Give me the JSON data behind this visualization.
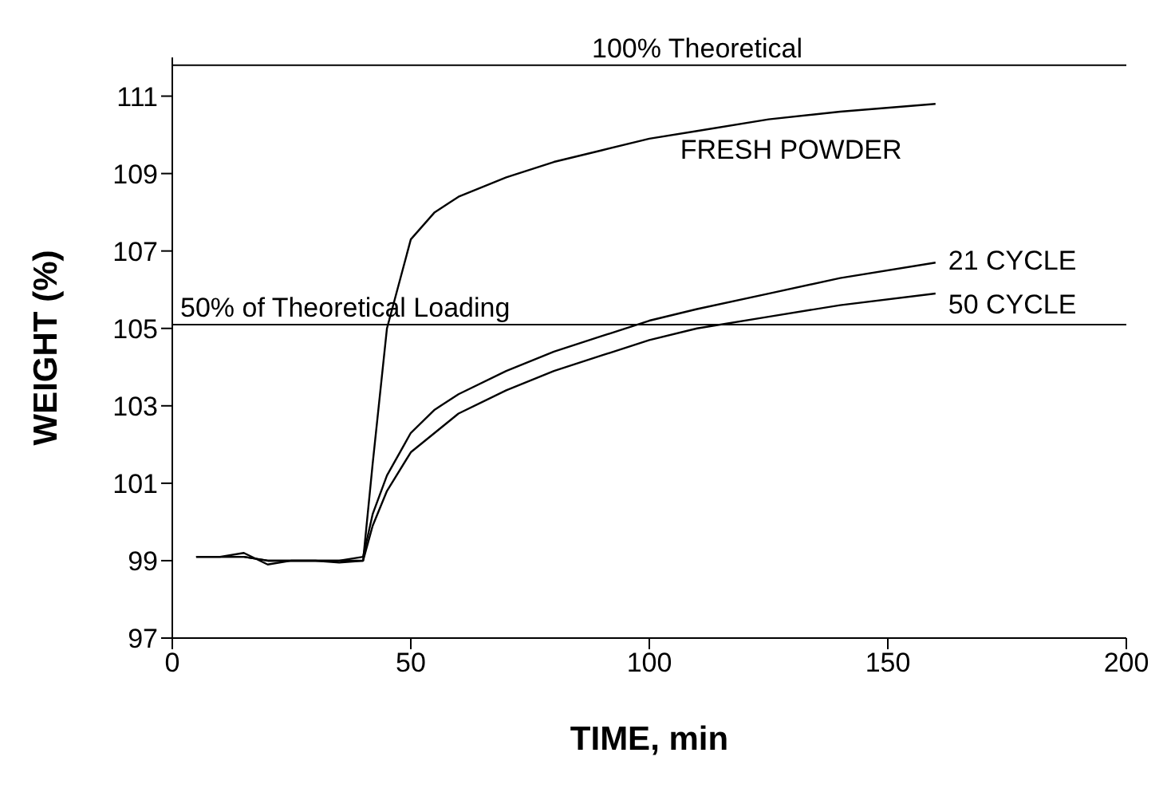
{
  "chart_data": {
    "type": "line",
    "xlabel": "TIME, min",
    "ylabel": "WEIGHT (%)",
    "x": [
      5,
      10,
      15,
      20,
      25,
      30,
      35,
      40,
      42,
      45,
      50,
      55,
      60,
      70,
      80,
      90,
      100,
      110,
      125,
      140,
      160
    ],
    "series": [
      {
        "name": "FRESH POWDER",
        "color": "#000000",
        "values": [
          99.1,
          99.1,
          99.2,
          98.9,
          99.0,
          99.0,
          99.0,
          99.0,
          101.5,
          105.0,
          107.3,
          108.0,
          108.4,
          108.9,
          109.3,
          109.6,
          109.9,
          110.1,
          110.4,
          110.6,
          110.8
        ]
      },
      {
        "name": "21 CYCLE",
        "color": "#000000",
        "values": [
          99.1,
          99.1,
          99.1,
          99.0,
          99.0,
          99.0,
          99.0,
          99.1,
          100.2,
          101.2,
          102.3,
          102.9,
          103.3,
          103.9,
          104.4,
          104.8,
          105.2,
          105.5,
          105.9,
          106.3,
          106.7
        ]
      },
      {
        "name": "50 CYCLE",
        "color": "#000000",
        "values": [
          99.1,
          99.1,
          99.1,
          99.0,
          99.0,
          99.0,
          98.95,
          99.0,
          99.9,
          100.8,
          101.8,
          102.3,
          102.8,
          103.4,
          103.9,
          104.3,
          104.7,
          105.0,
          105.3,
          105.6,
          105.9
        ]
      }
    ],
    "xlim": [
      0,
      200
    ],
    "xticks": [
      0,
      50,
      100,
      150,
      200
    ],
    "ylim": [
      97,
      112
    ],
    "yticks": [
      97,
      99,
      101,
      103,
      105,
      107,
      109,
      111
    ],
    "ref_lines": [
      {
        "axis": "y",
        "value": 111.8,
        "label": "100% Theoretical",
        "color": "#000000"
      },
      {
        "axis": "y",
        "value": 105.1,
        "label": "50% of Theoretical Loading",
        "color": "#000000"
      }
    ],
    "grid": false,
    "legend": false,
    "marker": "none",
    "line_style": "solid"
  }
}
